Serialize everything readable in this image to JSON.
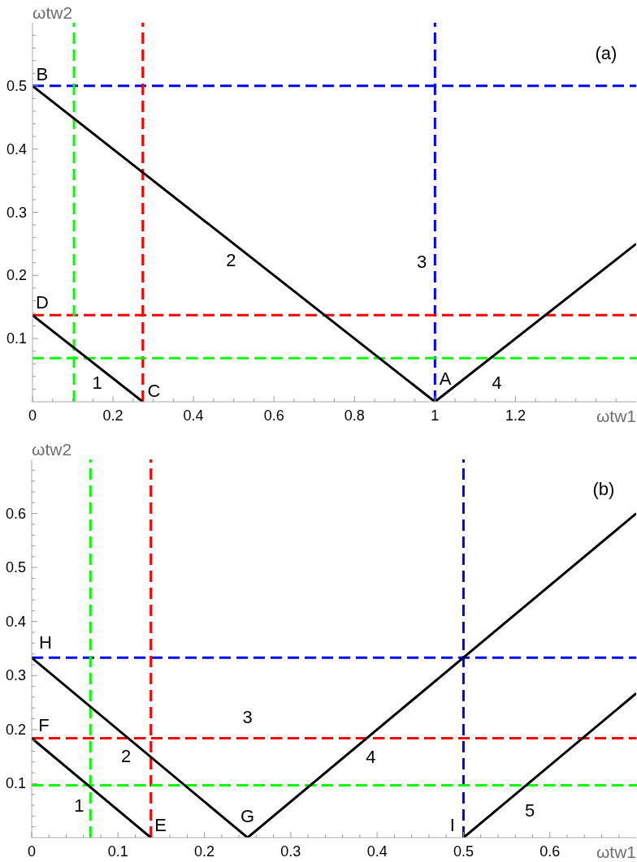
{
  "chart_data": [
    {
      "type": "line",
      "xlabel": "ωtw1",
      "ylabel": "ωtw2",
      "xlim": [
        0,
        1.5
      ],
      "ylim": [
        0,
        0.6
      ],
      "marker": "none",
      "xticks": [
        0,
        {
          "value": 0.05,
          "label": null
        },
        {
          "value": 0.1,
          "label": null
        },
        {
          "value": 0.15,
          "label": null
        },
        0.2,
        {
          "value": 0.25,
          "label": null
        },
        {
          "value": 0.3,
          "label": null
        },
        {
          "value": 0.35,
          "label": null
        },
        0.4,
        {
          "value": 0.45,
          "label": null
        },
        {
          "value": 0.5,
          "label": null
        },
        {
          "value": 0.55,
          "label": null
        },
        0.6,
        {
          "value": 0.65,
          "label": null
        },
        {
          "value": 0.7,
          "label": null
        },
        {
          "value": 0.75,
          "label": null
        },
        0.8,
        {
          "value": 0.85,
          "label": null
        },
        {
          "value": 0.9,
          "label": null
        },
        {
          "value": 0.95,
          "label": null
        },
        1,
        {
          "value": 1.05,
          "label": null
        },
        {
          "value": 1.1,
          "label": null
        },
        {
          "value": 1.15,
          "label": null
        },
        1.2,
        {
          "value": 1.25,
          "label": null
        },
        {
          "value": 1.3,
          "label": null
        },
        {
          "value": 1.35,
          "label": null
        },
        {
          "value": 1.4,
          "label": null
        },
        {
          "value": 1.45,
          "label": null
        }
      ],
      "yticks": [
        {
          "value": 0.02,
          "label": null
        },
        {
          "value": 0.04,
          "label": null
        },
        {
          "value": 0.06,
          "label": null
        },
        {
          "value": 0.08,
          "label": null
        },
        0.1,
        {
          "value": 0.12,
          "label": null
        },
        {
          "value": 0.14,
          "label": null
        },
        {
          "value": 0.16,
          "label": null
        },
        {
          "value": 0.18,
          "label": null
        },
        0.2,
        {
          "value": 0.22,
          "label": null
        },
        {
          "value": 0.24,
          "label": null
        },
        {
          "value": 0.26,
          "label": null
        },
        {
          "value": 0.28,
          "label": null
        },
        0.3,
        {
          "value": 0.32,
          "label": null
        },
        {
          "value": 0.34,
          "label": null
        },
        {
          "value": 0.36,
          "label": null
        },
        {
          "value": 0.38,
          "label": null
        },
        0.4,
        {
          "value": 0.42,
          "label": null
        },
        {
          "value": 0.44,
          "label": null
        },
        {
          "value": 0.46,
          "label": null
        },
        {
          "value": 0.48,
          "label": null
        },
        0.5,
        {
          "value": 0.52,
          "label": null
        },
        {
          "value": 0.54,
          "label": null
        },
        {
          "value": 0.56,
          "label": null
        },
        {
          "value": 0.58,
          "label": null
        }
      ],
      "series": [
        {
          "color": "#000000",
          "x": [
            0,
            0.274
          ],
          "values": [
            0.137,
            0
          ]
        },
        {
          "color": "#000000",
          "x": [
            0,
            1,
            1.5
          ],
          "values": [
            0.5,
            0,
            0.25
          ]
        }
      ],
      "ref_lines": [
        {
          "axis": "y",
          "value": 0.5,
          "color": "#0000ff",
          "line_style": "dashed"
        },
        {
          "axis": "x",
          "value": 1,
          "color": "#0000ff",
          "line_style": "dashed"
        },
        {
          "axis": "y",
          "value": 0.137,
          "color": "#ff0000",
          "line_style": "dashed"
        },
        {
          "axis": "x",
          "value": 0.274,
          "color": "#ff0000",
          "line_style": "dashed"
        },
        {
          "axis": "y",
          "value": 0.069,
          "color": "#00ff00",
          "line_style": "dashed"
        },
        {
          "axis": "x",
          "value": 0.103,
          "color": "#00ff00",
          "line_style": "dashed"
        }
      ],
      "annotations": [
        "(a)",
        "B",
        "D",
        "C",
        "A",
        "1",
        "2",
        "3",
        "4"
      ]
    },
    {
      "type": "line",
      "xlabel": "ωtw1",
      "ylabel": "ωtw2",
      "xlim": [
        0,
        0.7
      ],
      "ylim": [
        0,
        0.7
      ],
      "marker": "none",
      "xticks": [
        0,
        {
          "value": 0.02,
          "label": null
        },
        {
          "value": 0.04,
          "label": null
        },
        {
          "value": 0.06,
          "label": null
        },
        {
          "value": 0.08,
          "label": null
        },
        0.1,
        {
          "value": 0.12,
          "label": null
        },
        {
          "value": 0.14,
          "label": null
        },
        {
          "value": 0.16,
          "label": null
        },
        {
          "value": 0.18,
          "label": null
        },
        0.2,
        {
          "value": 0.22,
          "label": null
        },
        {
          "value": 0.24,
          "label": null
        },
        {
          "value": 0.26,
          "label": null
        },
        {
          "value": 0.28,
          "label": null
        },
        0.3,
        {
          "value": 0.32,
          "label": null
        },
        {
          "value": 0.34,
          "label": null
        },
        {
          "value": 0.36,
          "label": null
        },
        {
          "value": 0.38,
          "label": null
        },
        0.4,
        {
          "value": 0.42,
          "label": null
        },
        {
          "value": 0.44,
          "label": null
        },
        {
          "value": 0.46,
          "label": null
        },
        {
          "value": 0.48,
          "label": null
        },
        0.5,
        {
          "value": 0.52,
          "label": null
        },
        {
          "value": 0.54,
          "label": null
        },
        {
          "value": 0.56,
          "label": null
        },
        {
          "value": 0.58,
          "label": null
        },
        0.6,
        {
          "value": 0.62,
          "label": null
        },
        {
          "value": 0.64,
          "label": null
        },
        {
          "value": 0.66,
          "label": null
        },
        {
          "value": 0.68,
          "label": null
        }
      ],
      "yticks": [
        {
          "value": 0.02,
          "label": null
        },
        {
          "value": 0.04,
          "label": null
        },
        {
          "value": 0.06,
          "label": null
        },
        {
          "value": 0.08,
          "label": null
        },
        0.1,
        {
          "value": 0.12,
          "label": null
        },
        {
          "value": 0.14,
          "label": null
        },
        {
          "value": 0.16,
          "label": null
        },
        {
          "value": 0.18,
          "label": null
        },
        0.2,
        {
          "value": 0.22,
          "label": null
        },
        {
          "value": 0.24,
          "label": null
        },
        {
          "value": 0.26,
          "label": null
        },
        {
          "value": 0.28,
          "label": null
        },
        0.3,
        {
          "value": 0.32,
          "label": null
        },
        {
          "value": 0.34,
          "label": null
        },
        {
          "value": 0.36,
          "label": null
        },
        {
          "value": 0.38,
          "label": null
        },
        0.4,
        {
          "value": 0.42,
          "label": null
        },
        {
          "value": 0.44,
          "label": null
        },
        {
          "value": 0.46,
          "label": null
        },
        {
          "value": 0.48,
          "label": null
        },
        0.5,
        {
          "value": 0.52,
          "label": null
        },
        {
          "value": 0.54,
          "label": null
        },
        {
          "value": 0.56,
          "label": null
        },
        {
          "value": 0.58,
          "label": null
        },
        0.6,
        {
          "value": 0.62,
          "label": null
        },
        {
          "value": 0.64,
          "label": null
        },
        {
          "value": 0.66,
          "label": null
        },
        {
          "value": 0.68,
          "label": null
        }
      ],
      "series": [
        {
          "color": "#000000",
          "x": [
            0,
            0.138
          ],
          "values": [
            0.184,
            0
          ]
        },
        {
          "color": "#000000",
          "x": [
            0,
            0.25,
            0.7
          ],
          "values": [
            0.333,
            0,
            0.6
          ]
        },
        {
          "color": "#000000",
          "x": [
            0.5,
            0.7
          ],
          "values": [
            0,
            0.267
          ]
        }
      ],
      "ref_lines": [
        {
          "axis": "y",
          "value": 0.333,
          "color": "#0000ff",
          "line_style": "dashed"
        },
        {
          "axis": "x",
          "value": 0.5,
          "color": "#0000ff",
          "line_style": "dashed"
        },
        {
          "axis": "y",
          "value": 0.184,
          "color": "#ff0000",
          "line_style": "dashed"
        },
        {
          "axis": "x",
          "value": 0.138,
          "color": "#ff0000",
          "line_style": "dashed"
        },
        {
          "axis": "y",
          "value": 0.097,
          "color": "#00ff00",
          "line_style": "dashed"
        },
        {
          "axis": "x",
          "value": 0.068,
          "color": "#00ff00",
          "line_style": "dashed"
        }
      ],
      "annotations": [
        "(b)",
        "H",
        "F",
        "1",
        "2",
        "3",
        "E",
        "G",
        "4",
        "I",
        "5"
      ]
    }
  ]
}
